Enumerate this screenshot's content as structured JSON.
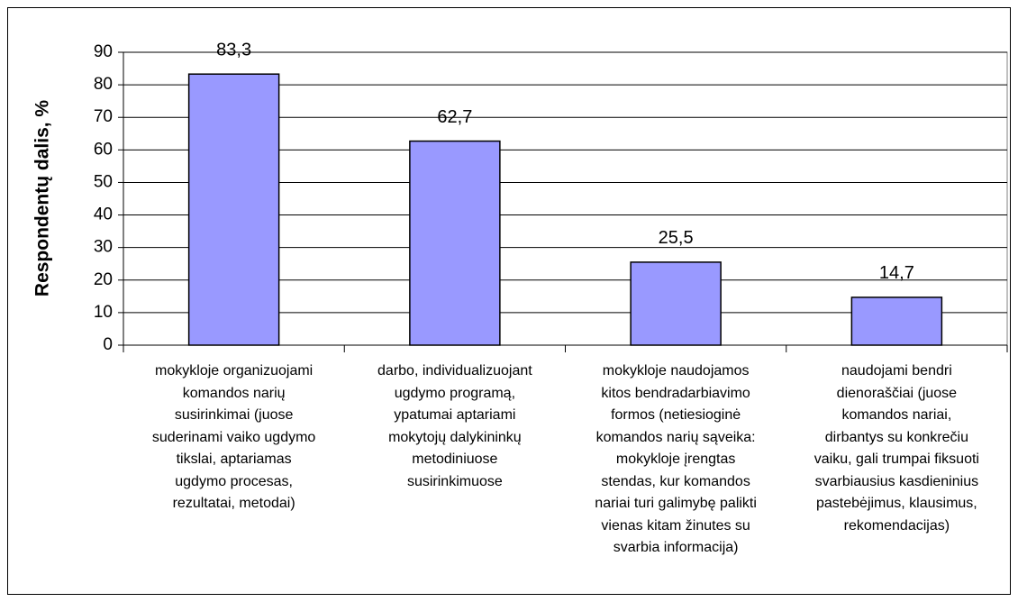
{
  "chart_data": {
    "type": "bar",
    "y_label": "Respondentų dalis, %",
    "categories": [
      "mokykloje organizuojami\nkomandos narių\nsusirinkimai (juose\nsuderinami vaiko ugdymo\ntikslai, aptariamas\nugdymo procesas,\nrezultatai, metodai)",
      "darbo, individualizuojant\nugdymo programą,\nypatumai aptariami\nmokytojų dalykininkų\nmetodiniuose\nsusirinkimuose",
      "mokykloje naudojamos\nkitos bendradarbiavimo\nformos (netiesioginė\nkomandos narių sąveika:\nmokykloje įrengtas\nstendas, kur komandos\nnariai turi galimybę palikti\nvienas kitam žinutes su\nsvarbia informacija)",
      "naudojami bendri\ndienoraščiai (juose\nkomandos nariai,\ndirbantys su konkrečiu\nvaiku, gali trumpai fiksuoti\nsvarbiausius kasdieninius\npastebėjimus, klausimus,\nrekomendacijas)"
    ],
    "values": [
      83.3,
      62.7,
      25.5,
      14.7
    ],
    "value_labels": [
      "83,3",
      "62,7",
      "25,5",
      "14,7"
    ],
    "color": "#9999ff",
    "ylim": [
      0,
      90
    ],
    "yticks": [
      0,
      10,
      20,
      30,
      40,
      50,
      60,
      70,
      80,
      90
    ],
    "grid": true
  }
}
